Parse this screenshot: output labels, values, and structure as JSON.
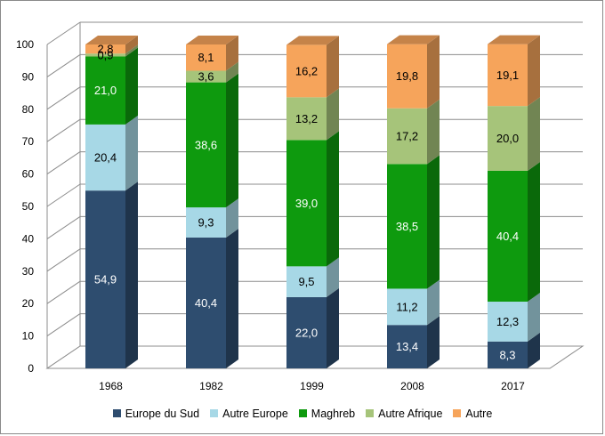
{
  "chart_data": {
    "type": "bar",
    "stacked": true,
    "three_d": true,
    "categories": [
      "1968",
      "1982",
      "1999",
      "2008",
      "2017"
    ],
    "series": [
      {
        "name": "Europe du Sud",
        "color": "#2e4d6f",
        "values": [
          54.9,
          40.4,
          22.0,
          13.4,
          8.3
        ],
        "labels": [
          "54,9",
          "40,4",
          "22,0",
          "13,4",
          "8,3"
        ]
      },
      {
        "name": "Autre Europe",
        "color": "#a7d8e6",
        "values": [
          20.4,
          9.3,
          9.5,
          11.2,
          12.3
        ],
        "labels": [
          "20,4",
          "9,3",
          "9,5",
          "11,2",
          "12,3"
        ]
      },
      {
        "name": "Maghreb",
        "color": "#0e9a0e",
        "values": [
          21.0,
          38.6,
          39.0,
          38.5,
          40.4
        ],
        "labels": [
          "21,0",
          "38,6",
          "39,0",
          "38,5",
          "40,4"
        ]
      },
      {
        "name": "Autre Afrique",
        "color": "#a6c47a",
        "values": [
          0.9,
          3.6,
          13.2,
          17.2,
          20.0
        ],
        "labels": [
          "0,9",
          "3,6",
          "13,2",
          "17,2",
          "20,0"
        ]
      },
      {
        "name": "Autre",
        "color": "#f6a45b",
        "values": [
          2.8,
          8.1,
          16.2,
          19.8,
          19.1
        ],
        "labels": [
          "2,8",
          "8,1",
          "16,2",
          "19,8",
          "19,1"
        ]
      }
    ],
    "ylim": [
      0,
      100
    ],
    "yticks": [
      "0",
      "10",
      "20",
      "30",
      "40",
      "50",
      "60",
      "70",
      "80",
      "90",
      "100"
    ],
    "grid": true,
    "legend": "bottom"
  }
}
